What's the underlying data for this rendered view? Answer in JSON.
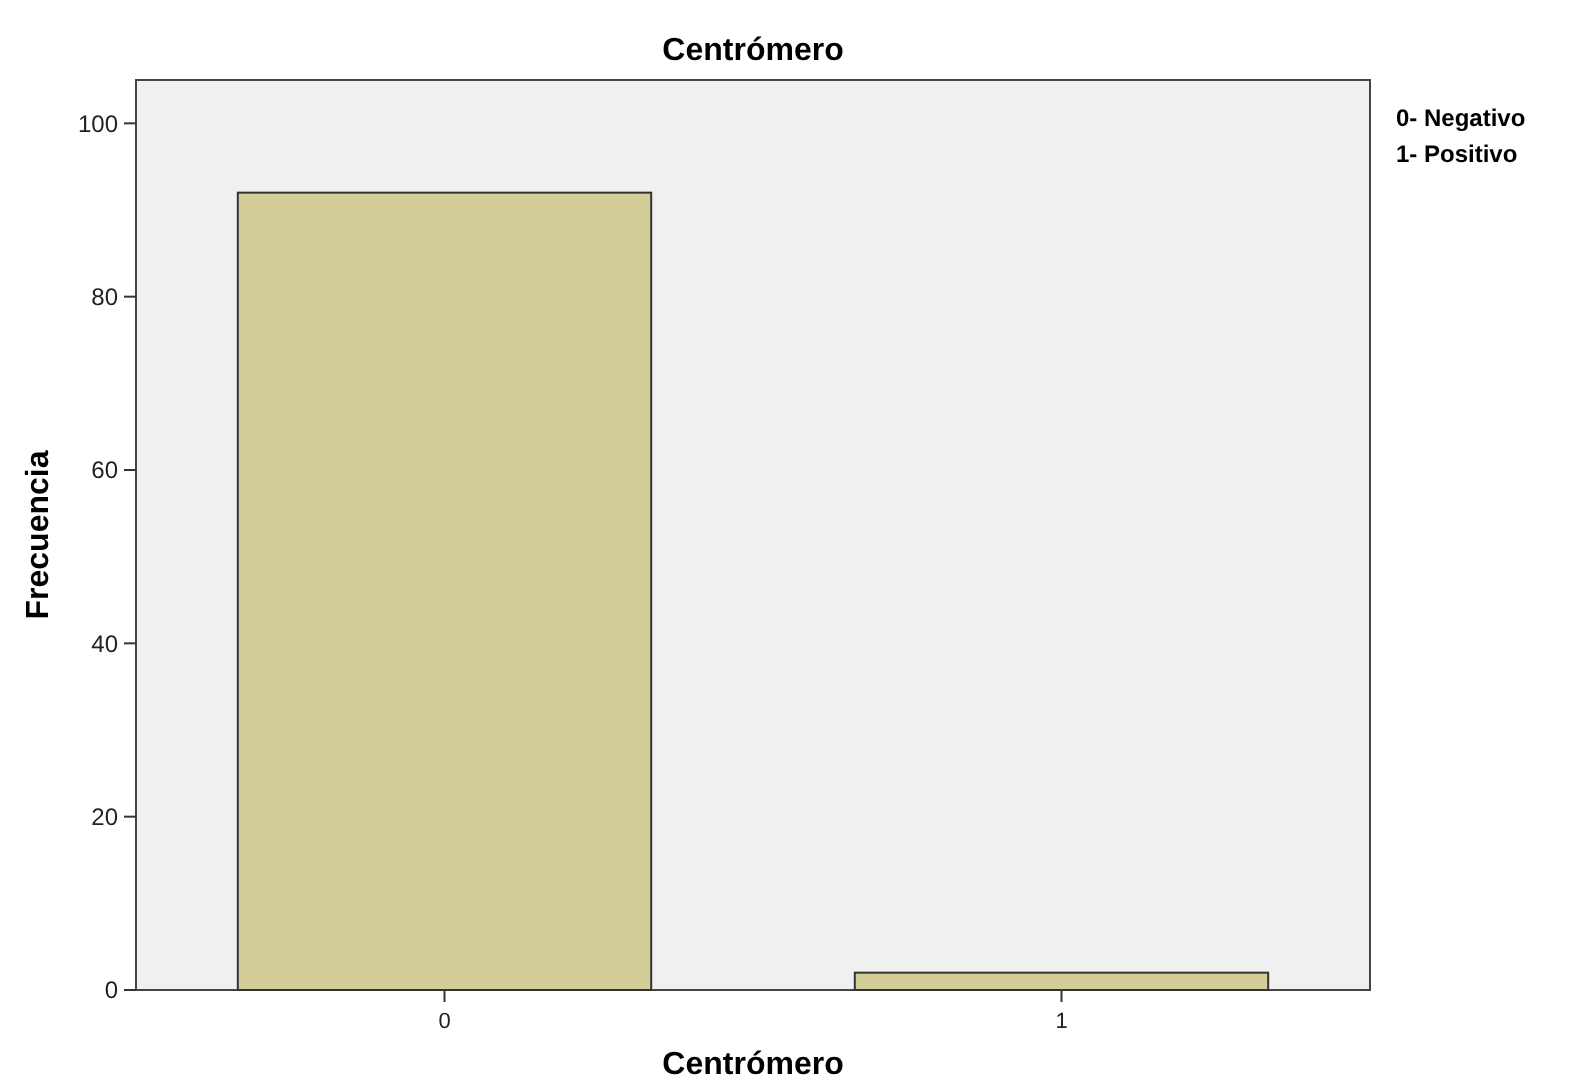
{
  "chart_data": {
    "type": "bar",
    "title": "Centrómero",
    "xlabel": "Centrómero",
    "ylabel": "Frecuencia",
    "categories": [
      "0",
      "1"
    ],
    "values": [
      92,
      2
    ],
    "color": "#d3ce97",
    "ylim": [
      0,
      105
    ],
    "yticks": [
      0,
      20,
      40,
      60,
      80,
      100
    ],
    "annotations": [
      "0- Negativo",
      "1- Positivo"
    ]
  }
}
